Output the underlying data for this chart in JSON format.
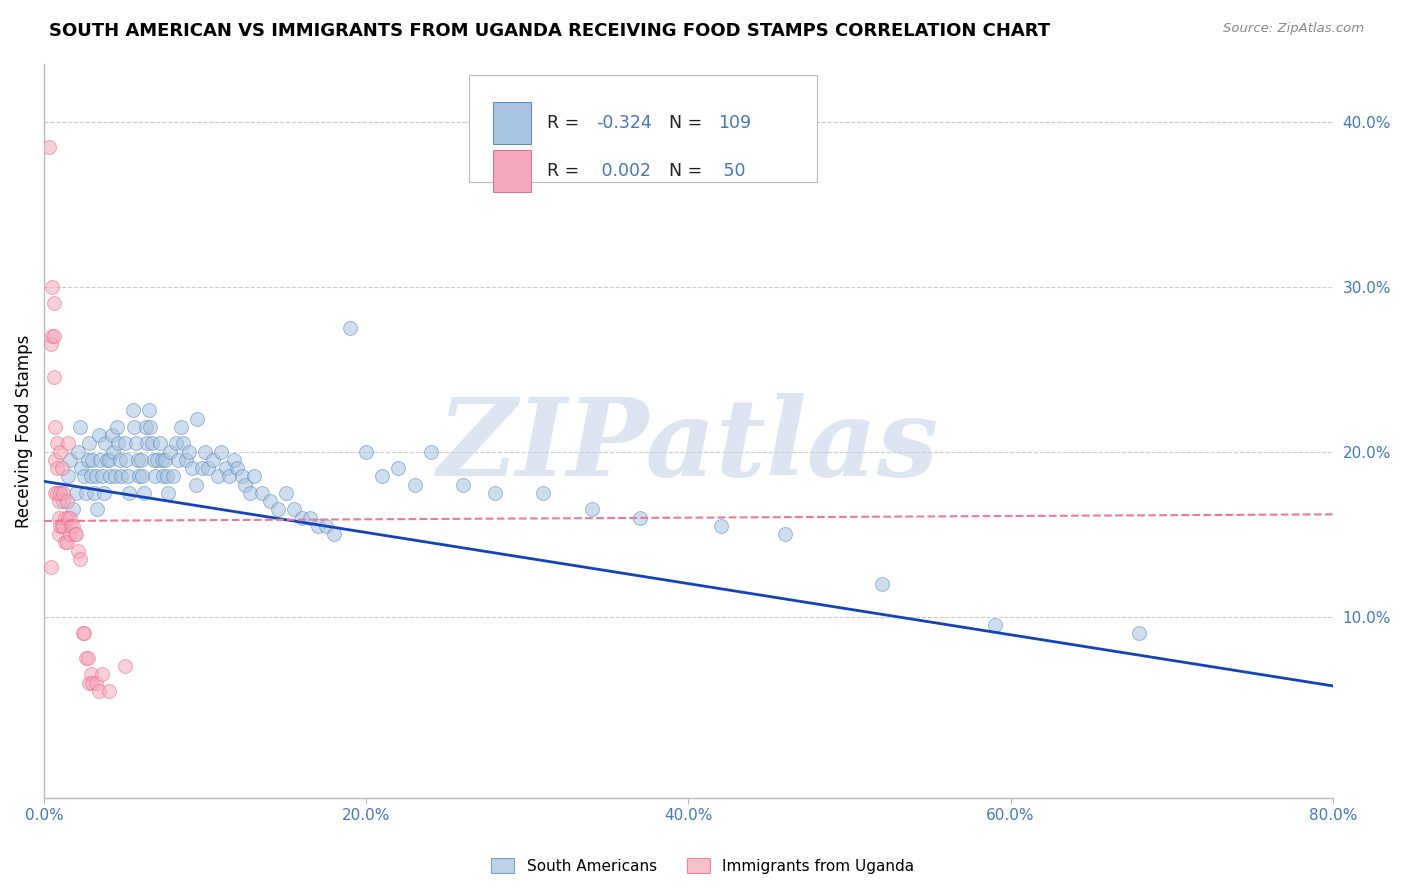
{
  "title": "SOUTH AMERICAN VS IMMIGRANTS FROM UGANDA RECEIVING FOOD STAMPS CORRELATION CHART",
  "source": "Source: ZipAtlas.com",
  "ylabel": "Receiving Food Stamps",
  "xlim": [
    0,
    0.8
  ],
  "ylim": [
    -0.01,
    0.435
  ],
  "xticks": [
    0.0,
    0.2,
    0.4,
    0.6,
    0.8
  ],
  "xtick_labels": [
    "0.0%",
    "20.0%",
    "40.0%",
    "60.0%",
    "80.0%"
  ],
  "yticks_right": [
    0.1,
    0.2,
    0.3,
    0.4
  ],
  "ytick_labels_right": [
    "10.0%",
    "20.0%",
    "30.0%",
    "40.0%"
  ],
  "blue_color": "#A8C4E0",
  "pink_color": "#F4AABC",
  "blue_edge": "#5588BB",
  "pink_edge": "#EE6688",
  "trend_blue": "#1144BB",
  "trend_pink": "#EE7799",
  "watermark": "ZIPatlas",
  "watermark_color": "#C5D5E8",
  "blue_points_x": [
    0.01,
    0.012,
    0.015,
    0.016,
    0.018,
    0.02,
    0.021,
    0.022,
    0.023,
    0.025,
    0.026,
    0.027,
    0.028,
    0.029,
    0.03,
    0.031,
    0.032,
    0.033,
    0.034,
    0.035,
    0.036,
    0.037,
    0.038,
    0.039,
    0.04,
    0.041,
    0.042,
    0.043,
    0.044,
    0.045,
    0.046,
    0.047,
    0.048,
    0.05,
    0.051,
    0.052,
    0.053,
    0.055,
    0.056,
    0.057,
    0.058,
    0.059,
    0.06,
    0.061,
    0.062,
    0.063,
    0.064,
    0.065,
    0.066,
    0.067,
    0.068,
    0.069,
    0.07,
    0.072,
    0.073,
    0.074,
    0.075,
    0.076,
    0.077,
    0.078,
    0.08,
    0.082,
    0.083,
    0.085,
    0.086,
    0.088,
    0.09,
    0.092,
    0.094,
    0.095,
    0.098,
    0.1,
    0.102,
    0.105,
    0.108,
    0.11,
    0.113,
    0.115,
    0.118,
    0.12,
    0.123,
    0.125,
    0.128,
    0.13,
    0.135,
    0.14,
    0.145,
    0.15,
    0.155,
    0.16,
    0.165,
    0.17,
    0.175,
    0.18,
    0.19,
    0.2,
    0.21,
    0.22,
    0.23,
    0.24,
    0.26,
    0.28,
    0.31,
    0.34,
    0.37,
    0.42,
    0.46,
    0.52,
    0.59,
    0.68
  ],
  "blue_points_y": [
    0.175,
    0.17,
    0.185,
    0.195,
    0.165,
    0.175,
    0.2,
    0.215,
    0.19,
    0.185,
    0.175,
    0.195,
    0.205,
    0.185,
    0.195,
    0.175,
    0.185,
    0.165,
    0.21,
    0.195,
    0.185,
    0.175,
    0.205,
    0.195,
    0.195,
    0.185,
    0.21,
    0.2,
    0.185,
    0.215,
    0.205,
    0.195,
    0.185,
    0.205,
    0.195,
    0.185,
    0.175,
    0.225,
    0.215,
    0.205,
    0.195,
    0.185,
    0.195,
    0.185,
    0.175,
    0.215,
    0.205,
    0.225,
    0.215,
    0.205,
    0.195,
    0.185,
    0.195,
    0.205,
    0.195,
    0.185,
    0.195,
    0.185,
    0.175,
    0.2,
    0.185,
    0.205,
    0.195,
    0.215,
    0.205,
    0.195,
    0.2,
    0.19,
    0.18,
    0.22,
    0.19,
    0.2,
    0.19,
    0.195,
    0.185,
    0.2,
    0.19,
    0.185,
    0.195,
    0.19,
    0.185,
    0.18,
    0.175,
    0.185,
    0.175,
    0.17,
    0.165,
    0.175,
    0.165,
    0.16,
    0.16,
    0.155,
    0.155,
    0.15,
    0.275,
    0.2,
    0.185,
    0.19,
    0.18,
    0.2,
    0.18,
    0.175,
    0.175,
    0.165,
    0.16,
    0.155,
    0.15,
    0.12,
    0.095,
    0.09
  ],
  "pink_points_x": [
    0.003,
    0.004,
    0.004,
    0.005,
    0.005,
    0.006,
    0.006,
    0.006,
    0.007,
    0.007,
    0.007,
    0.008,
    0.008,
    0.008,
    0.009,
    0.009,
    0.009,
    0.01,
    0.01,
    0.01,
    0.011,
    0.011,
    0.012,
    0.012,
    0.013,
    0.013,
    0.014,
    0.014,
    0.015,
    0.015,
    0.016,
    0.016,
    0.017,
    0.018,
    0.019,
    0.02,
    0.021,
    0.022,
    0.024,
    0.025,
    0.026,
    0.027,
    0.028,
    0.029,
    0.03,
    0.032,
    0.034,
    0.036,
    0.04,
    0.05
  ],
  "pink_points_y": [
    0.385,
    0.265,
    0.13,
    0.3,
    0.27,
    0.29,
    0.27,
    0.245,
    0.215,
    0.195,
    0.175,
    0.205,
    0.19,
    0.175,
    0.17,
    0.16,
    0.15,
    0.2,
    0.175,
    0.155,
    0.19,
    0.155,
    0.175,
    0.155,
    0.16,
    0.145,
    0.17,
    0.145,
    0.16,
    0.205,
    0.16,
    0.15,
    0.155,
    0.155,
    0.15,
    0.15,
    0.14,
    0.135,
    0.09,
    0.09,
    0.075,
    0.075,
    0.06,
    0.065,
    0.06,
    0.06,
    0.055,
    0.065,
    0.055,
    0.07
  ],
  "blue_trend_x": [
    0.0,
    0.8
  ],
  "blue_trend_y": [
    0.182,
    0.058
  ],
  "pink_trend_x": [
    0.0,
    0.8
  ],
  "pink_trend_y": [
    0.158,
    0.162
  ],
  "grid_color": "#CCCCCC",
  "title_fontsize": 13,
  "axis_color": "#4477BB",
  "marker_size": 100,
  "marker_alpha": 0.55
}
